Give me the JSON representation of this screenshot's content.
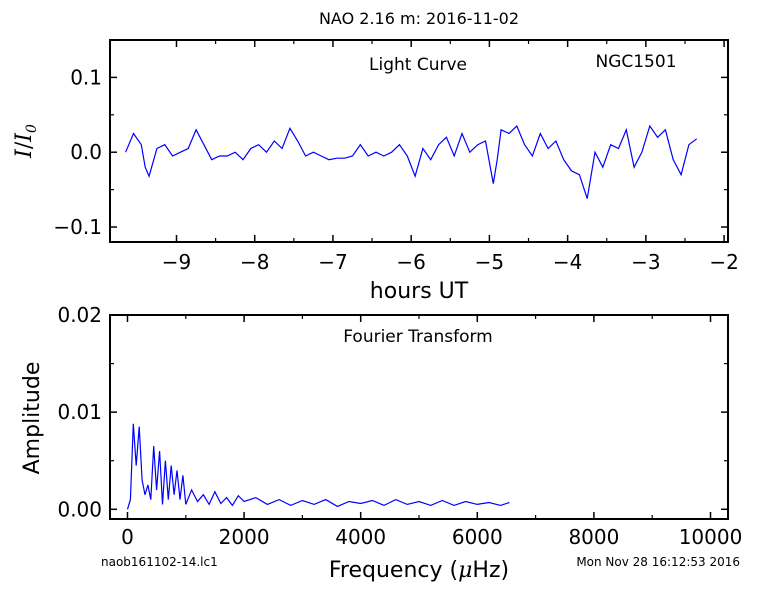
{
  "figure": {
    "title": "NAO 2.16 m:  2016-11-02",
    "footer_left": "naob161102-14.lc1",
    "footer_right": "Mon Nov 28 16:12:53 2016"
  },
  "chart_data": [
    {
      "type": "line",
      "panel": "light-curve",
      "title": "Light Curve",
      "annotation": "NGC1501",
      "xlabel": "hours UT",
      "ylabel_base": "I",
      "ylabel_sep": "/",
      "ylabel_sub": "0",
      "xlim": [
        -9.85,
        -1.95
      ],
      "ylim": [
        -0.12,
        0.15
      ],
      "xticks": [
        -9,
        -8,
        -7,
        -6,
        -5,
        -4,
        -3,
        -2
      ],
      "xtick_labels": [
        "−9",
        "−8",
        "−7",
        "−6",
        "−5",
        "−4",
        "−3",
        "−2"
      ],
      "yticks": [
        -0.1,
        0.0,
        0.1
      ],
      "ytick_labels": [
        "−0.1",
        "0.0",
        "0.1"
      ],
      "line_color": "#0000ff",
      "series": [
        {
          "x": [
            -9.65,
            -9.55,
            -9.45,
            -9.4,
            -9.35,
            -9.25,
            -9.15,
            -9.05,
            -8.95,
            -8.85,
            -8.75,
            -8.65,
            -8.55,
            -8.45,
            -8.35,
            -8.25,
            -8.15,
            -8.05,
            -7.95,
            -7.85,
            -7.75,
            -7.65,
            -7.55,
            -7.45,
            -7.35,
            -7.25,
            -7.15,
            -7.05,
            -6.95,
            -6.85,
            -6.75,
            -6.65,
            -6.55,
            -6.45,
            -6.35,
            -6.25,
            -6.15,
            -6.05,
            -5.95,
            -5.85,
            -5.75,
            -5.65,
            -5.55,
            -5.45,
            -5.35,
            -5.25,
            -5.15,
            -5.05,
            -4.95,
            -4.9,
            -4.85,
            -4.75,
            -4.65,
            -4.55,
            -4.45,
            -4.35,
            -4.25,
            -4.15,
            -4.05,
            -3.95,
            -3.85,
            -3.75,
            -3.65,
            -3.55,
            -3.45,
            -3.35,
            -3.25,
            -3.15,
            -3.05,
            -2.95,
            -2.85,
            -2.75,
            -2.65,
            -2.55,
            -2.45,
            -2.35
          ],
          "y": [
            0.0,
            0.025,
            0.01,
            -0.02,
            -0.032,
            0.005,
            0.01,
            -0.005,
            0.0,
            0.005,
            0.03,
            0.01,
            -0.01,
            -0.005,
            -0.005,
            0.0,
            -0.01,
            0.005,
            0.01,
            0.0,
            0.015,
            0.005,
            0.032,
            0.015,
            -0.005,
            0.0,
            -0.005,
            -0.01,
            -0.008,
            -0.008,
            -0.005,
            0.01,
            -0.005,
            0.0,
            -0.005,
            0.0,
            0.01,
            -0.005,
            -0.032,
            0.005,
            -0.01,
            0.01,
            0.02,
            -0.005,
            0.025,
            0.0,
            0.01,
            0.015,
            -0.042,
            -0.01,
            0.03,
            0.025,
            0.035,
            0.01,
            -0.005,
            0.025,
            0.005,
            0.015,
            -0.01,
            -0.025,
            -0.03,
            -0.062,
            0.0,
            -0.02,
            0.01,
            0.005,
            0.03,
            -0.02,
            0.0,
            0.035,
            0.02,
            0.03,
            -0.01,
            -0.03,
            0.01,
            0.018
          ]
        }
      ]
    },
    {
      "type": "line",
      "panel": "fourier-transform",
      "title": "Fourier Transform",
      "xlabel_base": "Frequency (",
      "xlabel_mu": "μ",
      "xlabel_end": "Hz)",
      "ylabel": "Amplitude",
      "xlim": [
        -300,
        10300
      ],
      "ylim": [
        -0.001,
        0.02
      ],
      "xticks": [
        0,
        2000,
        4000,
        6000,
        8000,
        10000
      ],
      "xtick_labels": [
        "0",
        "2000",
        "4000",
        "6000",
        "8000",
        "10000"
      ],
      "yticks": [
        0.0,
        0.01,
        0.02
      ],
      "ytick_labels": [
        "0.00",
        "0.01",
        "0.02"
      ],
      "line_color": "#0000ff",
      "series": [
        {
          "x": [
            0,
            50,
            100,
            150,
            200,
            250,
            300,
            350,
            400,
            450,
            500,
            550,
            600,
            650,
            700,
            750,
            800,
            850,
            900,
            950,
            1000,
            1100,
            1200,
            1300,
            1400,
            1500,
            1600,
            1700,
            1800,
            1900,
            2000,
            2200,
            2400,
            2600,
            2800,
            3000,
            3200,
            3400,
            3600,
            3800,
            4000,
            4200,
            4400,
            4600,
            4800,
            5000,
            5200,
            5400,
            5600,
            5800,
            6000,
            6200,
            6400,
            6550
          ],
          "y": [
            0.0,
            0.001,
            0.0088,
            0.0045,
            0.0085,
            0.003,
            0.0015,
            0.0025,
            0.001,
            0.0065,
            0.002,
            0.006,
            0.0005,
            0.005,
            0.001,
            0.0045,
            0.0015,
            0.004,
            0.001,
            0.0035,
            0.0005,
            0.002,
            0.0008,
            0.0015,
            0.0005,
            0.0018,
            0.0006,
            0.0012,
            0.0004,
            0.0014,
            0.0008,
            0.0012,
            0.0005,
            0.001,
            0.0004,
            0.0009,
            0.0005,
            0.001,
            0.0003,
            0.0008,
            0.0006,
            0.0009,
            0.0004,
            0.001,
            0.0005,
            0.0008,
            0.0004,
            0.0009,
            0.0004,
            0.0008,
            0.0005,
            0.0007,
            0.0004,
            0.0007
          ]
        }
      ]
    }
  ]
}
